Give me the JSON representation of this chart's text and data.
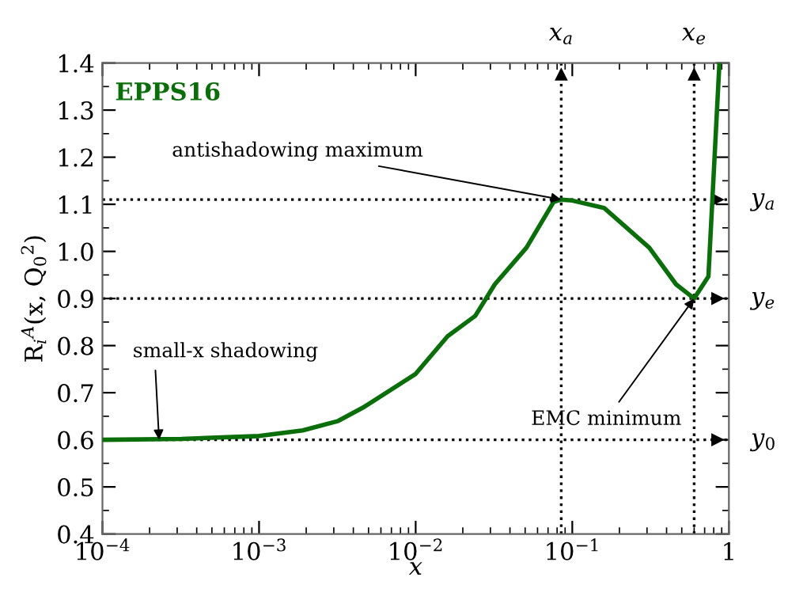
{
  "chart_data": {
    "type": "line",
    "title": "EPPS16",
    "xlabel": "x",
    "ylabel": "R$_{i}$$^{A}$(x, Q$_{0}$$^{2}$)",
    "log": "x",
    "x": [
      0.0001,
      0.00032,
      0.001,
      0.0019,
      0.0032,
      0.0047,
      0.01,
      0.016,
      0.024,
      0.032,
      0.051,
      0.076,
      0.085,
      0.1,
      0.16,
      0.31,
      0.46,
      0.6,
      0.74,
      0.81,
      0.87
    ],
    "series": [
      {
        "color": "#0a6e0a",
        "values": [
          0.6,
          0.602,
          0.608,
          0.62,
          0.64,
          0.67,
          0.74,
          0.82,
          0.863,
          0.93,
          1.008,
          1.105,
          1.11,
          1.108,
          1.092,
          1.008,
          0.93,
          0.9,
          0.947,
          1.2,
          1.4
        ]
      }
    ],
    "xlim": [
      0.0001,
      1
    ],
    "ylim": [
      0.4,
      1.4
    ],
    "xticks": [
      {
        "value": 0.0001,
        "label": "10$^{−4}$"
      },
      {
        "value": 0.001,
        "label": "10$^{−3}$"
      },
      {
        "value": 0.01,
        "label": "10$^{−2}$"
      },
      {
        "value": 0.1,
        "label": "10$^{−1}$"
      },
      1
    ],
    "yticks": [
      0.4,
      0.5,
      0.6,
      0.7,
      0.8,
      0.9,
      {
        "value": 1,
        "label": "1.0"
      },
      1.1,
      1.2,
      1.3,
      1.4
    ],
    "grid": false,
    "line_style": "solid",
    "marker": "none",
    "ref_lines": [
      {
        "axis": "x",
        "value": 0.085,
        "label": "x$_{a}$",
        "line_style": "dotted"
      },
      {
        "axis": "x",
        "value": 0.6,
        "label": "x$_{e}$",
        "line_style": "dotted"
      },
      {
        "axis": "y",
        "value": 1.11,
        "label": "y$_{a}$",
        "line_style": "dotted"
      },
      {
        "axis": "y",
        "value": 0.9,
        "label": "y$_{e}$",
        "line_style": "dotted"
      },
      {
        "axis": "y",
        "value": 0.6,
        "label": "y$_{0}$",
        "line_style": "dotted"
      }
    ],
    "annotations": [
      {
        "text": "antishadowing maximum",
        "x": 0.085,
        "y": 1.11
      },
      {
        "text": "small-x shadowing",
        "x": 0.00023,
        "y": 0.6
      },
      {
        "text": "EMC minimum",
        "x": 0.6,
        "y": 0.9
      }
    ]
  }
}
